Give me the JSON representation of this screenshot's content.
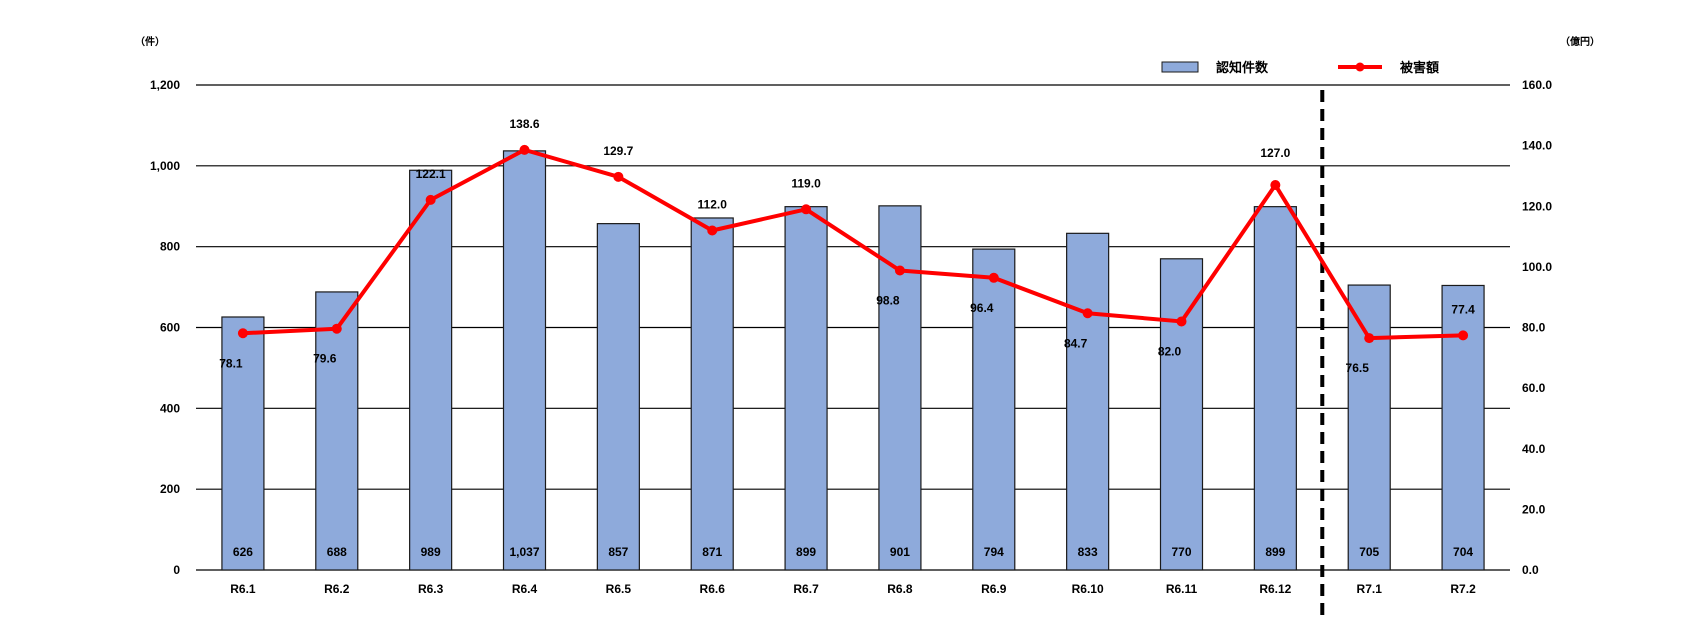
{
  "chart_data": {
    "type": "bar",
    "categories": [
      "R6.1",
      "R6.2",
      "R6.3",
      "R6.4",
      "R6.5",
      "R6.6",
      "R6.7",
      "R6.8",
      "R6.9",
      "R6.10",
      "R6.11",
      "R6.12",
      "R7.1",
      "R7.2"
    ],
    "series": [
      {
        "name": "認知件数",
        "type": "bar",
        "axis": "left",
        "color": "#8eaadb",
        "values": [
          626,
          688,
          989,
          1037,
          857,
          871,
          899,
          901,
          794,
          833,
          770,
          899,
          705,
          704
        ],
        "labels": [
          "626",
          "688",
          "989",
          "1,037",
          "857",
          "871",
          "899",
          "901",
          "794",
          "833",
          "770",
          "899",
          "705",
          "704"
        ]
      },
      {
        "name": "被害額",
        "type": "line",
        "axis": "right",
        "color": "#ff0000",
        "values": [
          78.1,
          79.6,
          122.1,
          138.6,
          129.7,
          112.0,
          119.0,
          98.8,
          96.4,
          84.7,
          82.0,
          127.0,
          76.5,
          77.4
        ],
        "labels": [
          "78.1",
          "79.6",
          "122.1",
          "138.6",
          "129.7",
          "112.0",
          "119.0",
          "98.8",
          "96.4",
          "84.7",
          "82.0",
          "127.0",
          "76.5",
          "77.4"
        ]
      }
    ],
    "y_left": {
      "unit": "（件）",
      "ylim": [
        0,
        1200
      ],
      "ticks": [
        "0",
        "200",
        "400",
        "600",
        "800",
        "1,000",
        "1,200"
      ]
    },
    "y_right": {
      "unit": "（億円）",
      "ylim": [
        0,
        160
      ],
      "ticks": [
        "0.0",
        "20.0",
        "40.0",
        "60.0",
        "80.0",
        "100.0",
        "120.0",
        "140.0",
        "160.0"
      ]
    },
    "divider_between": [
      "R6.12",
      "R7.1"
    ],
    "grid": true,
    "legend_position": "top-right"
  }
}
